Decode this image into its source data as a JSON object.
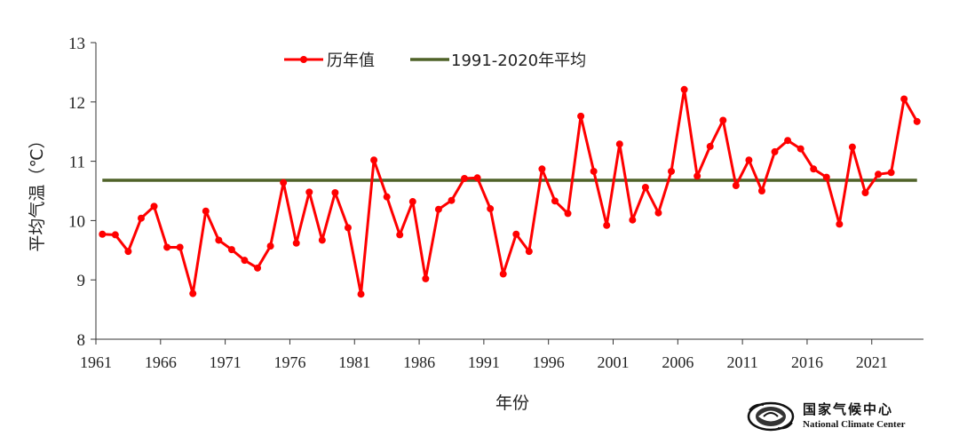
{
  "chart_data": {
    "type": "line",
    "ylabel": "平均气温（℃）",
    "xlabel": "年份",
    "ylim": [
      8,
      13
    ],
    "yticks": [
      8,
      9,
      10,
      11,
      12,
      13
    ],
    "xlim": [
      1961,
      2024
    ],
    "xticks": [
      1961,
      1966,
      1971,
      1976,
      1981,
      1986,
      1991,
      1996,
      2001,
      2006,
      2011,
      2016,
      2021
    ],
    "legend_position": "top-center",
    "series": [
      {
        "name": "历年值",
        "color": "#ff0000",
        "marker": "circle",
        "x": [
          1961,
          1962,
          1963,
          1964,
          1965,
          1966,
          1967,
          1968,
          1969,
          1970,
          1971,
          1972,
          1973,
          1974,
          1975,
          1976,
          1977,
          1978,
          1979,
          1980,
          1981,
          1982,
          1983,
          1984,
          1985,
          1986,
          1987,
          1988,
          1989,
          1990,
          1991,
          1992,
          1993,
          1994,
          1995,
          1996,
          1997,
          1998,
          1999,
          2000,
          2001,
          2002,
          2003,
          2004,
          2005,
          2006,
          2007,
          2008,
          2009,
          2010,
          2011,
          2012,
          2013,
          2014,
          2015,
          2016,
          2017,
          2018,
          2019,
          2020,
          2021,
          2022,
          2023,
          2024
        ],
        "values": [
          9.77,
          9.76,
          9.48,
          10.04,
          10.24,
          9.55,
          9.55,
          8.77,
          10.16,
          9.67,
          9.51,
          9.33,
          9.2,
          9.57,
          10.64,
          9.62,
          10.48,
          9.67,
          10.47,
          9.88,
          8.76,
          11.02,
          10.4,
          9.76,
          10.32,
          9.02,
          10.19,
          10.34,
          10.71,
          10.72,
          10.2,
          9.1,
          9.77,
          9.48,
          10.87,
          10.33,
          10.12,
          11.76,
          10.83,
          9.92,
          11.29,
          10.01,
          10.56,
          10.13,
          10.83,
          12.21,
          10.75,
          11.25,
          11.69,
          10.59,
          11.02,
          10.5,
          11.16,
          11.35,
          11.21,
          10.87,
          10.73,
          9.94,
          11.24,
          10.47,
          10.78,
          10.81,
          12.05,
          11.67
        ]
      },
      {
        "name": "1991-2020年平均",
        "color": "#4f6228",
        "x": [
          1961,
          2024
        ],
        "values": [
          10.68,
          10.68
        ]
      }
    ]
  },
  "logo": {
    "name_cn": "国家气候中心",
    "name_en": "National Climate Center"
  }
}
